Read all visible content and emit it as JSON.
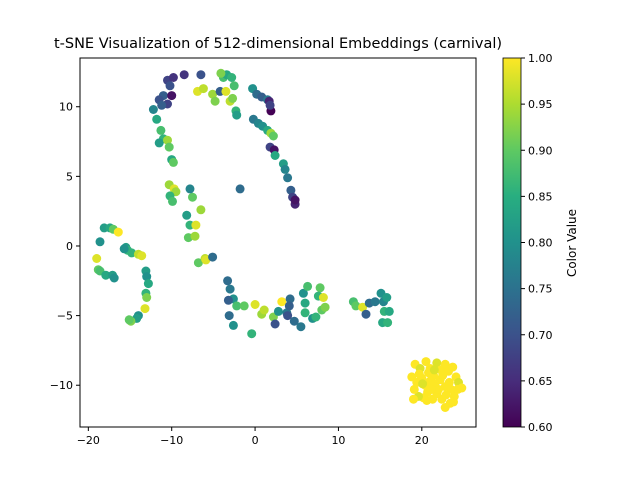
{
  "chart_data": {
    "type": "scatter",
    "title": "t-SNE Visualization of 512-dimensional Embeddings (carnival)",
    "xlabel": "",
    "ylabel": "",
    "xlim": [
      -21,
      26.5
    ],
    "ylim": [
      -13,
      13.5
    ],
    "xticks": [
      -20,
      -10,
      0,
      10,
      20
    ],
    "yticks": [
      -10,
      -5,
      0,
      5,
      10
    ],
    "grid": false,
    "colorbar": {
      "label": "Color Value",
      "min": 0.6,
      "max": 1.0,
      "ticks": [
        "0.60",
        "0.65",
        "0.70",
        "0.75",
        "0.80",
        "0.85",
        "0.90",
        "0.95",
        "1.00"
      ],
      "colormap": "viridis"
    },
    "points": [
      [
        -10.5,
        11.9,
        0.68
      ],
      [
        -9.8,
        12.1,
        0.66
      ],
      [
        -8.5,
        12.3,
        0.66
      ],
      [
        -10.2,
        11.5,
        0.7
      ],
      [
        -11.0,
        10.8,
        0.72
      ],
      [
        -11.5,
        10.5,
        0.7
      ],
      [
        -10.0,
        10.8,
        0.62
      ],
      [
        -10.5,
        10.2,
        0.68
      ],
      [
        -11.2,
        10.1,
        0.72
      ],
      [
        -12.2,
        9.8,
        0.78
      ],
      [
        -11.8,
        9.1,
        0.84
      ],
      [
        -11.3,
        8.3,
        0.88
      ],
      [
        -11.0,
        7.7,
        0.86
      ],
      [
        -11.5,
        7.4,
        0.82
      ],
      [
        -10.5,
        7.6,
        0.94
      ],
      [
        -10.3,
        7.1,
        0.9
      ],
      [
        -10.0,
        6.2,
        0.84
      ],
      [
        -9.8,
        6.0,
        0.9
      ],
      [
        -10.3,
        4.4,
        0.94
      ],
      [
        -9.7,
        4.1,
        0.98
      ],
      [
        -9.5,
        3.9,
        0.94
      ],
      [
        -10.2,
        3.6,
        0.86
      ],
      [
        -9.9,
        3.2,
        0.88
      ],
      [
        -8.2,
        2.2,
        0.82
      ],
      [
        -7.8,
        1.5,
        0.86
      ],
      [
        -7.1,
        1.5,
        0.98
      ],
      [
        -7.5,
        3.5,
        0.9
      ],
      [
        -7.8,
        4.1,
        0.78
      ],
      [
        -6.5,
        2.6,
        0.94
      ],
      [
        -8.0,
        0.6,
        0.9
      ],
      [
        -7.2,
        0.7,
        0.94
      ],
      [
        -6.8,
        -1.2,
        0.9
      ],
      [
        -6.0,
        -0.9,
        0.96
      ],
      [
        -5.9,
        -1.0,
        0.98
      ],
      [
        -5.1,
        -0.8,
        0.74
      ],
      [
        -6.9,
        11.1,
        0.98
      ],
      [
        -6.2,
        11.3,
        0.96
      ],
      [
        -6.5,
        12.3,
        0.7
      ],
      [
        -5.1,
        10.9,
        0.94
      ],
      [
        -4.8,
        10.4,
        0.92
      ],
      [
        -4.2,
        11.1,
        0.72
      ],
      [
        -3.8,
        12.1,
        0.88
      ],
      [
        -3.4,
        12.3,
        0.84
      ],
      [
        -2.8,
        12.1,
        0.86
      ],
      [
        -2.5,
        11.5,
        0.88
      ],
      [
        -3.0,
        10.4,
        0.96
      ],
      [
        -2.7,
        10.6,
        0.92
      ],
      [
        -2.3,
        9.7,
        0.86
      ],
      [
        -2.2,
        9.4,
        0.82
      ],
      [
        -3.5,
        11.1,
        0.98
      ],
      [
        -4.1,
        12.4,
        0.92
      ],
      [
        -1.8,
        4.1,
        0.74
      ],
      [
        -0.3,
        11.3,
        0.8
      ],
      [
        0.2,
        10.9,
        0.74
      ],
      [
        0.8,
        10.7,
        0.72
      ],
      [
        1.5,
        10.5,
        0.76
      ],
      [
        1.7,
        10.4,
        0.64
      ],
      [
        1.9,
        9.7,
        0.6
      ],
      [
        1.8,
        10.1,
        0.68
      ],
      [
        -0.2,
        9.1,
        0.76
      ],
      [
        0.4,
        8.8,
        0.78
      ],
      [
        0.9,
        8.6,
        0.8
      ],
      [
        1.5,
        8.3,
        0.84
      ],
      [
        1.9,
        8.1,
        0.94
      ],
      [
        2.2,
        7.9,
        0.9
      ],
      [
        1.8,
        7.1,
        0.68
      ],
      [
        2.3,
        6.9,
        0.62
      ],
      [
        2.4,
        6.5,
        0.84
      ],
      [
        3.4,
        5.9,
        0.82
      ],
      [
        3.6,
        5.5,
        0.78
      ],
      [
        3.9,
        4.9,
        0.76
      ],
      [
        4.3,
        4.0,
        0.72
      ],
      [
        4.5,
        3.5,
        0.68
      ],
      [
        4.8,
        3.0,
        0.64
      ],
      [
        4.8,
        3.3,
        0.62
      ],
      [
        -18.1,
        1.3,
        0.82
      ],
      [
        -17.4,
        1.3,
        0.84
      ],
      [
        -17.0,
        1.2,
        0.9
      ],
      [
        -16.4,
        1.0,
        1.0
      ],
      [
        -18.6,
        0.3,
        0.8
      ],
      [
        -19.0,
        -0.9,
        0.98
      ],
      [
        -18.8,
        -1.7,
        0.9
      ],
      [
        -18.6,
        -1.8,
        0.88
      ],
      [
        -17.9,
        -2.1,
        0.84
      ],
      [
        -17.1,
        -2.1,
        0.82
      ],
      [
        -16.9,
        -2.3,
        0.8
      ],
      [
        -15.5,
        -0.1,
        0.82
      ],
      [
        -15.3,
        -0.3,
        0.86
      ],
      [
        -14.8,
        -0.5,
        0.86
      ],
      [
        -14.0,
        -0.6,
        0.96
      ],
      [
        -13.6,
        -0.7,
        0.98
      ],
      [
        -15.7,
        -0.2,
        0.8
      ],
      [
        -13.1,
        -1.8,
        0.82
      ],
      [
        -13.0,
        -2.2,
        0.8
      ],
      [
        -12.8,
        -2.7,
        0.84
      ],
      [
        -13.1,
        -3.4,
        0.86
      ],
      [
        -13.0,
        -3.7,
        0.92
      ],
      [
        -13.2,
        -4.5,
        0.98
      ],
      [
        -14.0,
        -5.0,
        0.8
      ],
      [
        -14.2,
        -5.2,
        0.82
      ],
      [
        -14.9,
        -5.4,
        0.92
      ],
      [
        -15.1,
        -5.3,
        0.9
      ],
      [
        -3.3,
        -2.5,
        0.74
      ],
      [
        -3.0,
        -3.1,
        0.76
      ],
      [
        -2.6,
        -3.8,
        0.8
      ],
      [
        -2.2,
        -4.3,
        0.88
      ],
      [
        -1.3,
        -4.3,
        0.9
      ],
      [
        -3.2,
        -3.9,
        0.72
      ],
      [
        -3.1,
        -5.0,
        0.74
      ],
      [
        -2.6,
        -5.7,
        0.8
      ],
      [
        -0.4,
        -6.3,
        0.86
      ],
      [
        0.0,
        -4.2,
        0.98
      ],
      [
        0.8,
        -4.9,
        0.94
      ],
      [
        1.1,
        -4.6,
        0.96
      ],
      [
        2.2,
        -5.1,
        0.92
      ],
      [
        2.4,
        -5.6,
        0.7
      ],
      [
        2.8,
        -4.7,
        0.8
      ],
      [
        3.2,
        -4.0,
        1.0
      ],
      [
        3.8,
        -4.8,
        0.76
      ],
      [
        4.2,
        -3.8,
        0.74
      ],
      [
        4.1,
        -4.3,
        0.72
      ],
      [
        3.9,
        -5.0,
        0.7
      ],
      [
        4.7,
        -5.4,
        0.74
      ],
      [
        5.5,
        -5.8,
        0.76
      ],
      [
        5.8,
        -3.4,
        0.8
      ],
      [
        6.0,
        -4.1,
        0.84
      ],
      [
        6.0,
        -4.8,
        0.86
      ],
      [
        6.3,
        -2.9,
        0.88
      ],
      [
        6.9,
        -5.2,
        0.8
      ],
      [
        7.3,
        -5.1,
        0.86
      ],
      [
        7.8,
        -3.0,
        0.9
      ],
      [
        7.6,
        -3.6,
        0.86
      ],
      [
        8.0,
        -4.6,
        0.9
      ],
      [
        8.4,
        -4.4,
        0.92
      ],
      [
        8.2,
        -3.7,
        0.98
      ],
      [
        11.8,
        -4.0,
        0.88
      ],
      [
        12.1,
        -4.3,
        0.9
      ],
      [
        12.9,
        -4.4,
        0.98
      ],
      [
        13.3,
        -4.9,
        0.72
      ],
      [
        13.7,
        -4.1,
        0.74
      ],
      [
        14.4,
        -4.0,
        0.76
      ],
      [
        15.1,
        -3.4,
        0.8
      ],
      [
        15.4,
        -4.0,
        0.78
      ],
      [
        15.8,
        -3.7,
        0.82
      ],
      [
        15.5,
        -4.7,
        0.86
      ],
      [
        16.1,
        -4.7,
        0.84
      ],
      [
        15.3,
        -5.5,
        0.84
      ],
      [
        15.9,
        -5.5,
        0.86
      ],
      [
        18.8,
        -9.4,
        1.0
      ],
      [
        19.2,
        -8.5,
        1.0
      ],
      [
        19.8,
        -8.8,
        0.98
      ],
      [
        20.0,
        -9.5,
        1.0
      ],
      [
        20.5,
        -8.3,
        1.0
      ],
      [
        21.0,
        -8.8,
        1.0
      ],
      [
        21.4,
        -9.3,
        1.0
      ],
      [
        21.8,
        -8.4,
        0.98
      ],
      [
        22.3,
        -8.9,
        1.0
      ],
      [
        22.8,
        -8.5,
        1.0
      ],
      [
        23.2,
        -9.0,
        1.0
      ],
      [
        23.7,
        -8.7,
        1.0
      ],
      [
        24.1,
        -9.4,
        1.0
      ],
      [
        24.4,
        -9.8,
        0.98
      ],
      [
        24.3,
        -10.3,
        1.0
      ],
      [
        23.9,
        -10.8,
        1.0
      ],
      [
        23.4,
        -11.3,
        1.0
      ],
      [
        22.8,
        -11.6,
        1.0
      ],
      [
        22.4,
        -11.0,
        1.0
      ],
      [
        21.8,
        -10.6,
        1.0
      ],
      [
        21.3,
        -11.0,
        1.0
      ],
      [
        20.7,
        -10.5,
        1.0
      ],
      [
        20.2,
        -10.9,
        1.0
      ],
      [
        19.6,
        -10.8,
        0.98
      ],
      [
        19.1,
        -10.3,
        1.0
      ],
      [
        19.4,
        -9.8,
        1.0
      ],
      [
        20.4,
        -10.0,
        1.0
      ],
      [
        21.0,
        -9.7,
        1.0
      ],
      [
        21.6,
        -9.9,
        1.0
      ],
      [
        22.2,
        -9.6,
        1.0
      ],
      [
        22.8,
        -10.1,
        1.0
      ],
      [
        23.3,
        -9.8,
        1.0
      ],
      [
        22.0,
        -10.3,
        1.0
      ],
      [
        20.8,
        -9.1,
        1.0
      ],
      [
        21.5,
        -8.9,
        0.98
      ],
      [
        23.5,
        -10.3,
        1.0
      ],
      [
        22.9,
        -10.7,
        1.0
      ],
      [
        20.6,
        -11.1,
        1.0
      ],
      [
        19.7,
        -9.2,
        1.0
      ],
      [
        24.8,
        -10.2,
        1.0
      ],
      [
        23.8,
        -11.2,
        1.0
      ],
      [
        22.5,
        -9.3,
        1.0
      ],
      [
        21.1,
        -10.3,
        1.0
      ],
      [
        19.0,
        -11.0,
        1.0
      ],
      [
        20.1,
        -9.9,
        0.98
      ]
    ]
  }
}
